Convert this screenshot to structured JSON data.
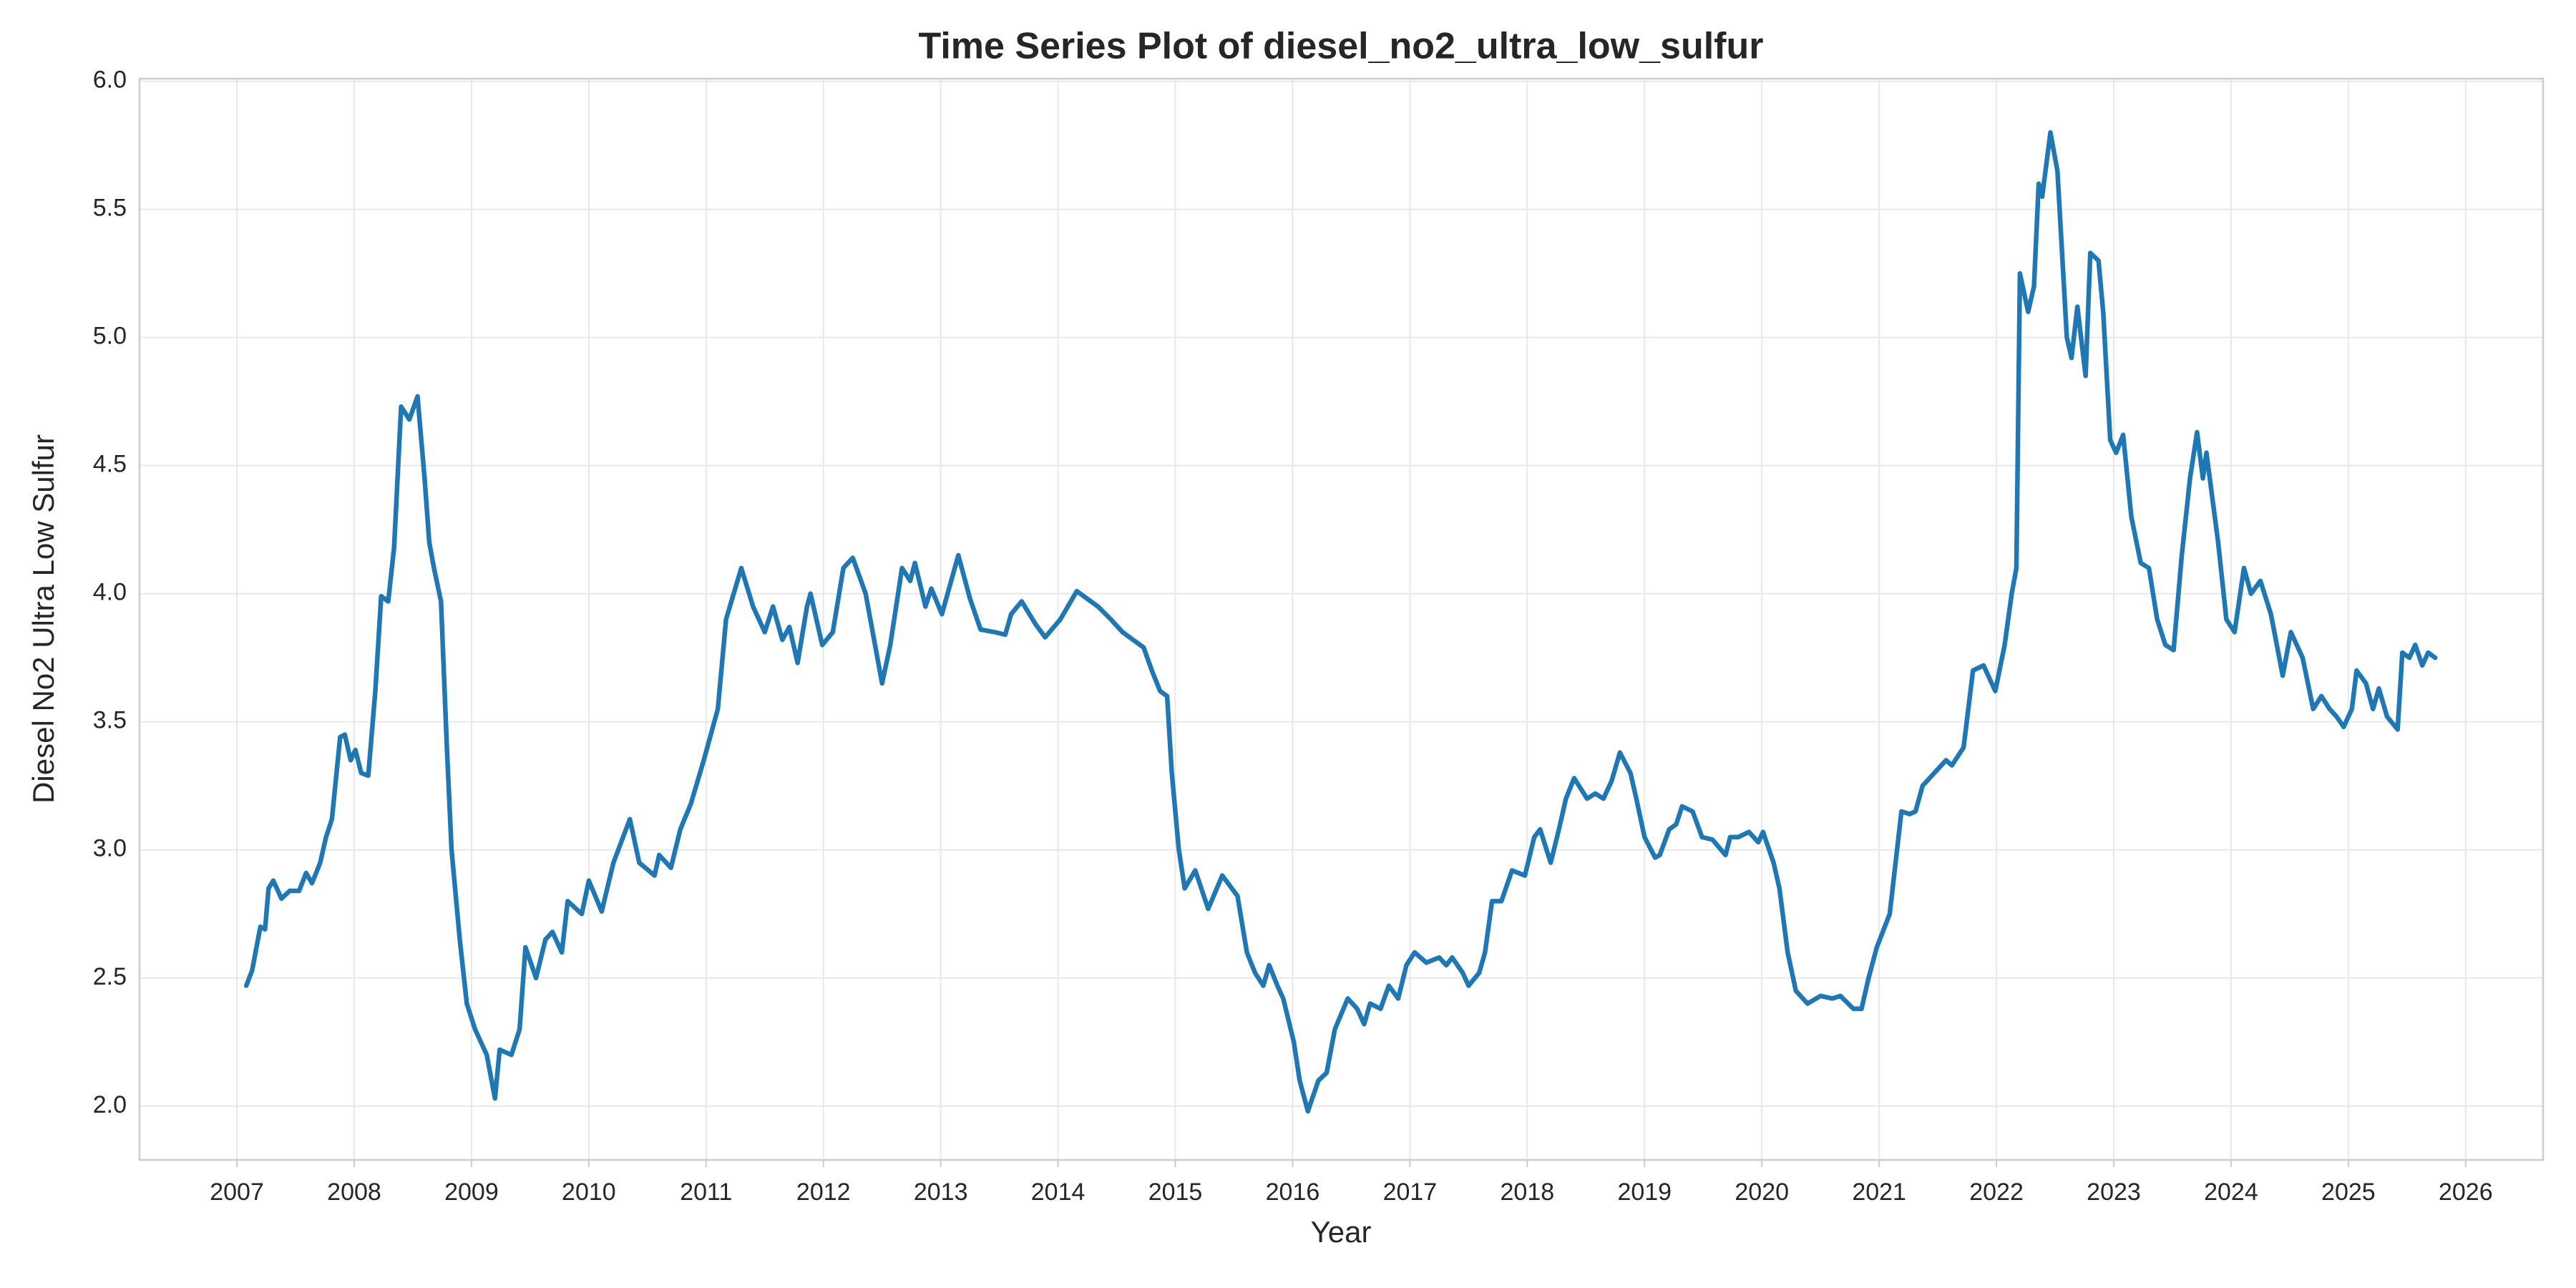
{
  "chart_data": {
    "type": "line",
    "title": "Time Series Plot of diesel_no2_ultra_low_sulfur",
    "xlabel": "Year",
    "ylabel": "Diesel No2 Ultra Low Sulfur",
    "color": "#1f77b4",
    "grid": true,
    "xlim": [
      2006.17,
      2026.66
    ],
    "ylim": [
      1.79,
      6.01
    ],
    "xticks": [
      2007,
      2008,
      2009,
      2010,
      2011,
      2012,
      2013,
      2014,
      2015,
      2016,
      2017,
      2018,
      2019,
      2020,
      2021,
      2022,
      2023,
      2024,
      2025,
      2026
    ],
    "yticks": [
      {
        "value": 2,
        "label": "2.0"
      },
      2.5,
      {
        "value": 3,
        "label": "3.0"
      },
      3.5,
      {
        "value": 4,
        "label": "4.0"
      },
      4.5,
      {
        "value": 5,
        "label": "5.0"
      },
      5.5,
      {
        "value": 6,
        "label": "6.0"
      }
    ],
    "x": [
      2007.08,
      2007.13,
      2007.2,
      2007.24,
      2007.27,
      2007.31,
      2007.38,
      2007.45,
      2007.53,
      2007.59,
      2007.64,
      2007.71,
      2007.76,
      2007.81,
      2007.88,
      2007.92,
      2007.97,
      2008.01,
      2008.06,
      2008.12,
      2008.18,
      2008.23,
      2008.29,
      2008.34,
      2008.4,
      2008.47,
      2008.54,
      2008.6,
      2008.64,
      2008.68,
      2008.74,
      2008.79,
      2008.83,
      2008.9,
      2008.96,
      2009.03,
      2009.13,
      2009.2,
      2009.24,
      2009.34,
      2009.41,
      2009.46,
      2009.55,
      2009.63,
      2009.69,
      2009.77,
      2009.82,
      2009.94,
      2010.0,
      2010.11,
      2010.21,
      2010.35,
      2010.43,
      2010.56,
      2010.6,
      2010.7,
      2010.78,
      2010.87,
      2010.98,
      2011.1,
      2011.17,
      2011.3,
      2011.4,
      2011.5,
      2011.57,
      2011.65,
      2011.71,
      2011.78,
      2011.86,
      2011.89,
      2011.99,
      2012.08,
      2012.17,
      2012.25,
      2012.36,
      2012.5,
      2012.57,
      2012.67,
      2012.74,
      2012.78,
      2012.87,
      2012.92,
      2013.01,
      2013.15,
      2013.25,
      2013.34,
      2013.46,
      2013.55,
      2013.6,
      2013.69,
      2013.81,
      2013.89,
      2014.02,
      2014.16,
      2014.34,
      2014.45,
      2014.55,
      2014.73,
      2014.8,
      2014.87,
      2014.93,
      2014.97,
      2015.03,
      2015.08,
      2015.17,
      2015.28,
      2015.4,
      2015.53,
      2015.61,
      2015.68,
      2015.75,
      2015.8,
      2015.87,
      2015.92,
      2016.01,
      2016.06,
      2016.13,
      2016.22,
      2016.29,
      2016.36,
      2016.47,
      2016.55,
      2016.61,
      2016.66,
      2016.75,
      2016.82,
      2016.9,
      2016.97,
      2017.04,
      2017.14,
      2017.25,
      2017.31,
      2017.36,
      2017.45,
      2017.5,
      2017.59,
      2017.64,
      2017.7,
      2017.78,
      2017.87,
      2017.98,
      2018.06,
      2018.11,
      2018.2,
      2018.27,
      2018.33,
      2018.4,
      2018.51,
      2018.58,
      2018.65,
      2018.72,
      2018.79,
      2018.88,
      2018.93,
      2019.0,
      2019.09,
      2019.13,
      2019.21,
      2019.27,
      2019.32,
      2019.41,
      2019.49,
      2019.58,
      2019.69,
      2019.73,
      2019.8,
      2019.89,
      2019.97,
      2020.01,
      2020.1,
      2020.15,
      2020.22,
      2020.29,
      2020.39,
      2020.5,
      2020.6,
      2020.67,
      2020.78,
      2020.85,
      2020.91,
      2020.98,
      2021.09,
      2021.19,
      2021.26,
      2021.31,
      2021.37,
      2021.47,
      2021.57,
      2021.62,
      2021.72,
      2021.8,
      2021.89,
      2021.99,
      2022.07,
      2022.13,
      2022.17,
      2022.2,
      2022.27,
      2022.32,
      2022.36,
      2022.39,
      2022.46,
      2022.52,
      2022.6,
      2022.64,
      2022.69,
      2022.76,
      2022.8,
      2022.87,
      2022.91,
      2022.97,
      2023.02,
      2023.08,
      2023.15,
      2023.23,
      2023.3,
      2023.37,
      2023.44,
      2023.51,
      2023.58,
      2023.65,
      2023.71,
      2023.76,
      2023.79,
      2023.89,
      2023.96,
      2024.03,
      2024.11,
      2024.17,
      2024.25,
      2024.34,
      2024.39,
      2024.44,
      2024.51,
      2024.61,
      2024.7,
      2024.77,
      2024.84,
      2024.9,
      2024.96,
      2025.03,
      2025.07,
      2025.15,
      2025.21,
      2025.26,
      2025.33,
      2025.42,
      2025.46,
      2025.52,
      2025.57,
      2025.63,
      2025.68,
      2025.74
    ],
    "values": [
      2.47,
      2.53,
      2.7,
      2.69,
      2.85,
      2.88,
      2.81,
      2.84,
      2.84,
      2.91,
      2.87,
      2.95,
      3.05,
      3.12,
      3.44,
      3.45,
      3.35,
      3.39,
      3.3,
      3.29,
      3.62,
      3.99,
      3.97,
      4.18,
      4.73,
      4.68,
      4.77,
      4.45,
      4.2,
      4.1,
      3.97,
      3.4,
      3.0,
      2.65,
      2.4,
      2.3,
      2.2,
      2.03,
      2.22,
      2.2,
      2.3,
      2.62,
      2.5,
      2.65,
      2.68,
      2.6,
      2.8,
      2.75,
      2.88,
      2.76,
      2.95,
      3.12,
      2.95,
      2.9,
      2.98,
      2.93,
      3.08,
      3.18,
      3.35,
      3.55,
      3.9,
      4.1,
      3.95,
      3.85,
      3.95,
      3.82,
      3.87,
      3.73,
      3.95,
      4.0,
      3.8,
      3.85,
      4.1,
      4.14,
      4.0,
      3.65,
      3.8,
      4.1,
      4.05,
      4.12,
      3.95,
      4.02,
      3.92,
      4.15,
      3.98,
      3.86,
      3.85,
      3.84,
      3.92,
      3.97,
      3.88,
      3.83,
      3.9,
      4.01,
      3.95,
      3.9,
      3.85,
      3.79,
      3.7,
      3.62,
      3.6,
      3.3,
      3.0,
      2.85,
      2.92,
      2.77,
      2.9,
      2.82,
      2.6,
      2.52,
      2.47,
      2.55,
      2.47,
      2.42,
      2.25,
      2.1,
      1.98,
      2.1,
      2.13,
      2.3,
      2.42,
      2.38,
      2.32,
      2.4,
      2.38,
      2.47,
      2.42,
      2.55,
      2.6,
      2.56,
      2.58,
      2.55,
      2.58,
      2.52,
      2.47,
      2.52,
      2.6,
      2.8,
      2.8,
      2.92,
      2.9,
      3.05,
      3.08,
      2.95,
      3.08,
      3.2,
      3.28,
      3.2,
      3.22,
      3.2,
      3.27,
      3.38,
      3.3,
      3.2,
      3.05,
      2.97,
      2.98,
      3.08,
      3.1,
      3.17,
      3.15,
      3.05,
      3.04,
      2.98,
      3.05,
      3.05,
      3.07,
      3.03,
      3.07,
      2.95,
      2.85,
      2.6,
      2.45,
      2.4,
      2.43,
      2.42,
      2.43,
      2.38,
      2.38,
      2.5,
      2.62,
      2.75,
      3.15,
      3.14,
      3.15,
      3.25,
      3.3,
      3.35,
      3.33,
      3.4,
      3.7,
      3.72,
      3.62,
      3.8,
      4.0,
      4.1,
      5.25,
      5.1,
      5.2,
      5.6,
      5.55,
      5.8,
      5.65,
      5.0,
      4.92,
      5.12,
      4.85,
      5.33,
      5.3,
      5.1,
      4.6,
      4.55,
      4.62,
      4.3,
      4.12,
      4.1,
      3.9,
      3.8,
      3.78,
      4.15,
      4.45,
      4.63,
      4.45,
      4.55,
      4.2,
      3.9,
      3.85,
      4.1,
      4.0,
      4.05,
      3.92,
      3.8,
      3.68,
      3.85,
      3.75,
      3.55,
      3.6,
      3.55,
      3.52,
      3.48,
      3.55,
      3.7,
      3.65,
      3.55,
      3.63,
      3.52,
      3.47,
      3.77,
      3.75,
      3.8,
      3.72,
      3.77,
      3.75
    ]
  }
}
